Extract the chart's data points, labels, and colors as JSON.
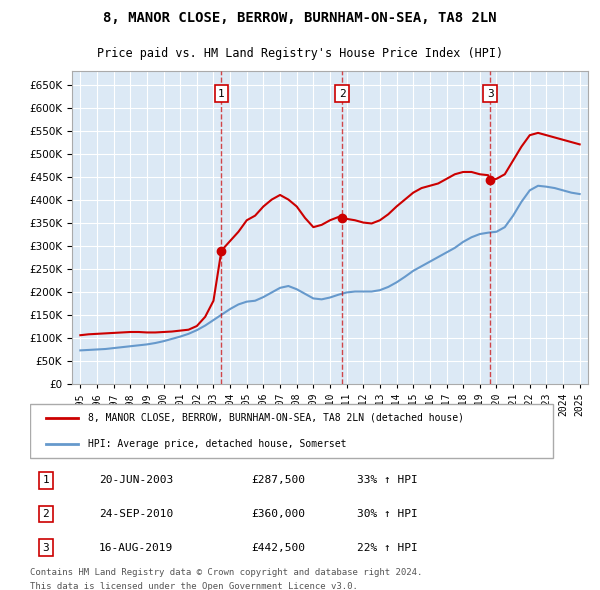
{
  "title": "8, MANOR CLOSE, BERROW, BURNHAM-ON-SEA, TA8 2LN",
  "subtitle": "Price paid vs. HM Land Registry's House Price Index (HPI)",
  "bg_color": "#dce9f5",
  "plot_bg": "#dce9f5",
  "red_color": "#cc0000",
  "blue_color": "#6699cc",
  "legend_label_red": "8, MANOR CLOSE, BERROW, BURNHAM-ON-SEA, TA8 2LN (detached house)",
  "legend_label_blue": "HPI: Average price, detached house, Somerset",
  "purchases": [
    {
      "num": 1,
      "year": 2003.47,
      "price": 287500,
      "date": "20-JUN-2003",
      "pct": "33%"
    },
    {
      "num": 2,
      "year": 2010.73,
      "price": 360000,
      "date": "24-SEP-2010",
      "pct": "30%"
    },
    {
      "num": 3,
      "year": 2019.62,
      "price": 442500,
      "date": "16-AUG-2019",
      "pct": "22%"
    }
  ],
  "footnote1": "Contains HM Land Registry data © Crown copyright and database right 2024.",
  "footnote2": "This data is licensed under the Open Government Licence v3.0.",
  "ylim": [
    0,
    680000
  ],
  "yticks": [
    0,
    50000,
    100000,
    150000,
    200000,
    250000,
    300000,
    350000,
    400000,
    450000,
    500000,
    550000,
    600000,
    650000
  ],
  "red_x": [
    1995.0,
    1995.5,
    1996.0,
    1996.5,
    1997.0,
    1997.5,
    1998.0,
    1998.5,
    1999.0,
    1999.5,
    2000.0,
    2000.5,
    2001.0,
    2001.5,
    2002.0,
    2002.5,
    2003.0,
    2003.47,
    2003.5,
    2004.0,
    2004.5,
    2005.0,
    2005.5,
    2006.0,
    2006.5,
    2007.0,
    2007.5,
    2008.0,
    2008.5,
    2009.0,
    2009.5,
    2010.0,
    2010.5,
    2010.73,
    2011.0,
    2011.5,
    2012.0,
    2012.5,
    2013.0,
    2013.5,
    2014.0,
    2014.5,
    2015.0,
    2015.5,
    2016.0,
    2016.5,
    2017.0,
    2017.5,
    2018.0,
    2018.5,
    2019.0,
    2019.5,
    2019.62,
    2020.0,
    2020.5,
    2021.0,
    2021.5,
    2022.0,
    2022.5,
    2023.0,
    2023.5,
    2024.0,
    2024.5,
    2025.0
  ],
  "red_y": [
    105000,
    107000,
    108000,
    109000,
    110000,
    111000,
    112000,
    112000,
    111000,
    111000,
    112000,
    113000,
    115000,
    117000,
    125000,
    145000,
    180000,
    287500,
    290000,
    310000,
    330000,
    355000,
    365000,
    385000,
    400000,
    410000,
    400000,
    385000,
    360000,
    340000,
    345000,
    355000,
    362000,
    360000,
    358000,
    355000,
    350000,
    348000,
    355000,
    368000,
    385000,
    400000,
    415000,
    425000,
    430000,
    435000,
    445000,
    455000,
    460000,
    460000,
    455000,
    453000,
    442500,
    445000,
    455000,
    485000,
    515000,
    540000,
    545000,
    540000,
    535000,
    530000,
    525000,
    520000
  ],
  "blue_x": [
    1995.0,
    1995.5,
    1996.0,
    1996.5,
    1997.0,
    1997.5,
    1998.0,
    1998.5,
    1999.0,
    1999.5,
    2000.0,
    2000.5,
    2001.0,
    2001.5,
    2002.0,
    2002.5,
    2003.0,
    2003.5,
    2004.0,
    2004.5,
    2005.0,
    2005.5,
    2006.0,
    2006.5,
    2007.0,
    2007.5,
    2008.0,
    2008.5,
    2009.0,
    2009.5,
    2010.0,
    2010.5,
    2011.0,
    2011.5,
    2012.0,
    2012.5,
    2013.0,
    2013.5,
    2014.0,
    2014.5,
    2015.0,
    2015.5,
    2016.0,
    2016.5,
    2017.0,
    2017.5,
    2018.0,
    2018.5,
    2019.0,
    2019.5,
    2020.0,
    2020.5,
    2021.0,
    2021.5,
    2022.0,
    2022.5,
    2023.0,
    2023.5,
    2024.0,
    2024.5,
    2025.0
  ],
  "blue_y": [
    72000,
    73000,
    74000,
    75000,
    77000,
    79000,
    81000,
    83000,
    85000,
    88000,
    92000,
    97000,
    102000,
    108000,
    116000,
    126000,
    138000,
    150000,
    162000,
    172000,
    178000,
    180000,
    188000,
    198000,
    208000,
    212000,
    205000,
    195000,
    185000,
    183000,
    187000,
    193000,
    198000,
    200000,
    200000,
    200000,
    203000,
    210000,
    220000,
    232000,
    245000,
    255000,
    265000,
    275000,
    285000,
    295000,
    308000,
    318000,
    325000,
    328000,
    330000,
    340000,
    365000,
    395000,
    420000,
    430000,
    428000,
    425000,
    420000,
    415000,
    412000
  ]
}
